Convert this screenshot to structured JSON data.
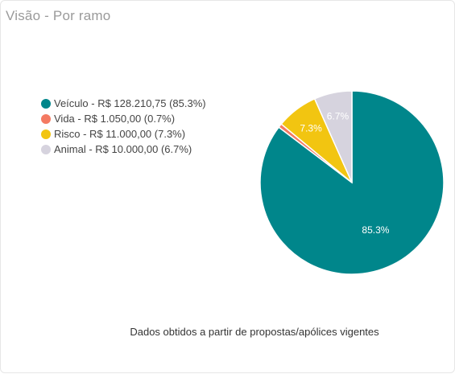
{
  "card": {
    "title": "Visão - Por ramo",
    "footnote": "Dados obtidos a partir de propostas/apólices vigentes"
  },
  "chart_data": {
    "type": "pie",
    "series": [
      {
        "legend": "Veículo - R$ 128.210,75 (85.3%)",
        "value": 128210.75,
        "percent": 85.3,
        "label": "85.3%",
        "color": "#00868b",
        "label_color": "#ffffff"
      },
      {
        "legend": "Vida - R$ 1.050,00 (0.7%)",
        "value": 1050.0,
        "percent": 0.7,
        "label": "",
        "color": "#f47a62",
        "label_color": "#ffffff"
      },
      {
        "legend": "Risco - R$ 11.000,00 (7.3%)",
        "value": 11000.0,
        "percent": 7.3,
        "label": "7.3%",
        "color": "#f2c511",
        "label_color": "#ffffff"
      },
      {
        "legend": "Animal - R$ 10.000,00 (6.7%)",
        "value": 10000.0,
        "percent": 6.7,
        "label": "6.7%",
        "color": "#d6d3de",
        "label_color": "#ffffff"
      }
    ],
    "start_angle": "12 o'clock",
    "direction": "clockwise",
    "legend_position": "left"
  }
}
